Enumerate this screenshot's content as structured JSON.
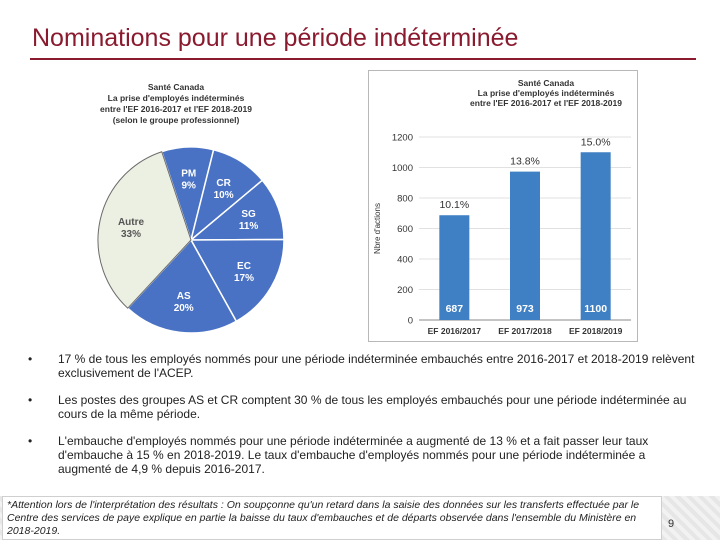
{
  "page": {
    "title": "Nominations pour une période indéterminée",
    "page_number": "9"
  },
  "bullets": [
    "17 % de tous les employés nommés pour une période indéterminée embauchés entre 2016-2017 et 2018-2019 relèvent exclusivement de l'ACEP.",
    "Les postes des groupes AS et CR comptent 30 % de tous les employés embauchés pour une période indéterminée au cours de la même période.",
    "L'embauche d'employés nommés pour une période indéterminée a augmenté de 13 % et a fait passer leur taux d'embauche à 15 % en 2018-2019. Le taux d'embauche d'employés nommés pour une période indéterminée a augmenté de 4,9 % depuis 2016-2017."
  ],
  "bullet_marker": "•",
  "footnote": "*Attention lors de l'interprétation des résultats : On soupçonne qu'un retard dans la saisie des données sur les transferts effectuée par le Centre des services de paye explique en partie la baisse du taux d'embauches et de départs observée dans l'ensemble du Ministère en 2018-2019.",
  "chart_data": [
    {
      "type": "pie",
      "title_lines": [
        "Santé Canada",
        "La prise d'employés indéterminés",
        "entre l'EF 2016-2017 et l'EF 2018-2019",
        "(selon le groupe professionnel)"
      ],
      "categories": [
        "PM",
        "CR",
        "SG",
        "EC",
        "AS",
        "Autre"
      ],
      "values": [
        9,
        10,
        11,
        17,
        20,
        33
      ],
      "labels": [
        "9%",
        "10%",
        "11%",
        "17%",
        "20%",
        "33%"
      ],
      "colors": {
        "primary": "#4a72c4",
        "highlight": "#ecf0e2",
        "label_on_primary": "#ffffff",
        "label_on_highlight": "#555555",
        "edge": "#ffffff"
      }
    },
    {
      "type": "bar",
      "title_lines": [
        "Santé Canada",
        "La prise d'employés indéterminés",
        "entre l'EF 2016-2017 et l'EF 2018-2019"
      ],
      "categories": [
        "EF 2016/2017",
        "EF 2017/2018",
        "EF 2018/2019"
      ],
      "values": [
        687,
        973,
        1100
      ],
      "value_labels": [
        "687",
        "973",
        "1100"
      ],
      "rate_labels": [
        "10.1%",
        "13.8%",
        "15.0%"
      ],
      "ylabel": "Nbre d'actions",
      "ylim": [
        0,
        1200
      ],
      "yticks": [
        0,
        200,
        400,
        600,
        800,
        1000,
        1200
      ],
      "colors": {
        "bar": "#3f7fc4",
        "grid": "#e1e1e1",
        "axis": "#888888",
        "text": "#333333",
        "value_text": "#ffffff"
      }
    }
  ]
}
